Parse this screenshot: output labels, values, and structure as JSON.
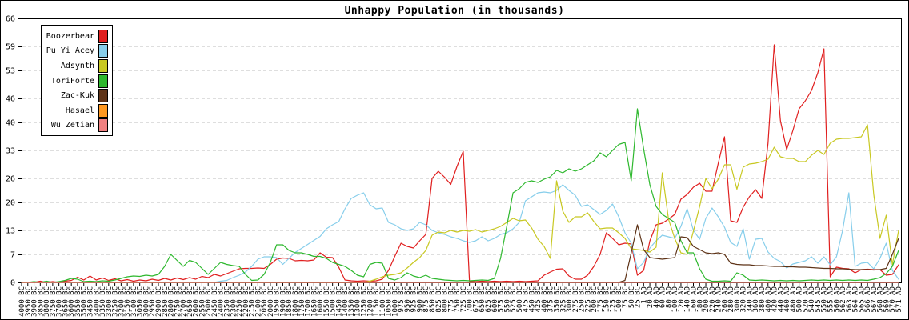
{
  "title": "Unhappy Population (in thousands)",
  "chart_data": {
    "type": "line",
    "title": "Unhappy Population (in thousands)",
    "xlabel": "",
    "ylabel": "",
    "ylim": [
      0,
      66
    ],
    "yticks": [
      0,
      7,
      13,
      20,
      26,
      33,
      40,
      46,
      53,
      59,
      66
    ],
    "grid": "horizontal-dashed",
    "legend_position": "top-left",
    "categories": [
      "4000 BC",
      "3950 BC",
      "3900 BC",
      "3850 BC",
      "3800 BC",
      "3750 BC",
      "3700 BC",
      "3650 BC",
      "3600 BC",
      "3550 BC",
      "3500 BC",
      "3450 BC",
      "3400 BC",
      "3350 BC",
      "3300 BC",
      "3250 BC",
      "3200 BC",
      "3150 BC",
      "3100 BC",
      "3050 BC",
      "3000 BC",
      "2950 BC",
      "2900 BC",
      "2850 BC",
      "2800 BC",
      "2750 BC",
      "2700 BC",
      "2650 BC",
      "2600 BC",
      "2550 BC",
      "2500 BC",
      "2450 BC",
      "2400 BC",
      "2350 BC",
      "2300 BC",
      "2250 BC",
      "2200 BC",
      "2150 BC",
      "2100 BC",
      "2050 BC",
      "2000 BC",
      "1950 BC",
      "1900 BC",
      "1850 BC",
      "1800 BC",
      "1750 BC",
      "1700 BC",
      "1650 BC",
      "1600 BC",
      "1550 BC",
      "1500 BC",
      "1450 BC",
      "1400 BC",
      "1350 BC",
      "1300 BC",
      "1250 BC",
      "1200 BC",
      "1150 BC",
      "1100 BC",
      "1050 BC",
      "1000 BC",
      "975 BC",
      "950 BC",
      "925 BC",
      "900 BC",
      "875 BC",
      "850 BC",
      "825 BC",
      "800 BC",
      "775 BC",
      "750 BC",
      "725 BC",
      "700 BC",
      "675 BC",
      "650 BC",
      "625 BC",
      "600 BC",
      "575 BC",
      "550 BC",
      "525 BC",
      "500 BC",
      "475 BC",
      "450 BC",
      "425 BC",
      "400 BC",
      "375 BC",
      "350 BC",
      "325 BC",
      "300 BC",
      "275 BC",
      "250 BC",
      "225 BC",
      "200 BC",
      "175 BC",
      "150 BC",
      "125 BC",
      "100 BC",
      "75 BC",
      "50 BC",
      "25 BC",
      "1 AD",
      "20 AD",
      "40 AD",
      "60 AD",
      "80 AD",
      "100 AD",
      "120 AD",
      "140 AD",
      "160 AD",
      "180 AD",
      "200 AD",
      "220 AD",
      "240 AD",
      "260 AD",
      "280 AD",
      "300 AD",
      "320 AD",
      "340 AD",
      "360 AD",
      "380 AD",
      "400 AD",
      "420 AD",
      "440 AD",
      "460 AD",
      "480 AD",
      "500 AD",
      "520 AD",
      "540 AD",
      "545 AD",
      "550 AD",
      "555 AD",
      "560 AD",
      "562 AD",
      "563 AD",
      "564 AD",
      "565 AD",
      "566 AD",
      "567 AD",
      "568 AD",
      "569 AD",
      "570 AD",
      "571 AD"
    ],
    "series": [
      {
        "name": "Boozerbear",
        "color": "#e01f1f",
        "values": [
          0,
          0,
          0,
          0.3,
          0,
          0.2,
          0,
          0.3,
          0.5,
          1.3,
          0.6,
          1.6,
          0.6,
          1.1,
          0.5,
          0.9,
          0.4,
          0.7,
          0.3,
          0.6,
          0.4,
          0.8,
          0.5,
          1,
          0.6,
          1.1,
          0.7,
          1.2,
          0.8,
          1.5,
          1.2,
          2,
          1.6,
          2.2,
          2.8,
          3.4,
          3.5,
          3.5,
          3.6,
          3.5,
          4.5,
          5.8,
          6.1,
          6,
          5.4,
          5.5,
          5.4,
          5.6,
          7.4,
          6.3,
          6.2,
          3.8,
          0.6,
          0.4,
          0.3,
          0.4,
          0.3,
          0.4,
          0.8,
          3,
          6.5,
          9.8,
          9,
          8.6,
          10.4,
          12,
          26,
          27.8,
          26.3,
          24.5,
          29,
          32.8,
          0.3,
          0.2,
          0.3,
          0.2,
          0.3,
          0.2,
          0.3,
          0.2,
          0.3,
          0.2,
          0.3,
          0.4,
          1.8,
          2.6,
          3.3,
          3.4,
          1.6,
          0.8,
          0.8,
          1.8,
          4,
          7,
          12.4,
          11,
          9.4,
          9.8,
          9.6,
          1.8,
          3,
          10.4,
          14.4,
          14.8,
          15.8,
          17,
          20.8,
          22,
          23.8,
          24.8,
          22.8,
          22.8,
          29.8,
          36.4,
          15.4,
          15,
          18.8,
          21.4,
          23.2,
          21,
          34.8,
          59.4,
          40.4,
          33.2,
          38,
          43.4,
          45.4,
          48,
          52.4,
          58.4,
          1.4,
          3.8,
          3.5,
          3.4,
          2.4,
          3.2,
          3.3,
          3.2,
          3.2,
          1.8,
          2,
          4.4
        ]
      },
      {
        "name": "Pu Yi Acey",
        "color": "#87ceeb",
        "values": [
          0,
          0,
          0,
          0,
          0,
          0,
          0,
          0,
          0,
          0,
          0,
          0,
          0,
          0,
          0,
          0,
          0,
          0,
          0,
          0,
          0,
          0,
          0,
          0,
          0,
          0,
          0,
          0,
          0,
          0,
          0,
          0,
          0.3,
          0.5,
          1.2,
          1.8,
          2.6,
          4,
          5.8,
          6.4,
          6.4,
          6.2,
          4.5,
          6,
          7.5,
          8.5,
          9.5,
          10.5,
          11.5,
          13.4,
          14.4,
          15.2,
          18.4,
          21,
          21.8,
          22.4,
          19.4,
          18.4,
          18.6,
          15,
          14.4,
          13.4,
          13,
          13.4,
          15,
          14.4,
          13,
          12.4,
          12,
          11.4,
          11,
          10.4,
          10,
          10.4,
          11.4,
          10.4,
          11,
          12,
          12.4,
          13.4,
          15,
          20.4,
          21.4,
          22.4,
          22.6,
          22.4,
          23,
          24.4,
          23,
          21.8,
          19,
          19.4,
          18.2,
          17,
          18,
          19.6,
          16.4,
          12.4,
          9.8,
          3.4,
          5,
          8.6,
          10.4,
          11.8,
          11.4,
          11,
          14,
          18.4,
          13,
          10.8,
          16,
          18.6,
          16.4,
          13.8,
          10,
          9,
          13.4,
          5.8,
          10.8,
          11,
          7.6,
          6,
          5.2,
          3.6,
          4.6,
          5,
          5.4,
          6.4,
          4.8,
          6.4,
          4.4,
          6.4,
          13,
          22.4,
          4,
          4.8,
          5,
          3.4,
          6,
          9.8,
          3,
          0.8
        ]
      },
      {
        "name": "Adsynth",
        "color": "#c8c822",
        "values": [
          0,
          0,
          0,
          0,
          0,
          0,
          0,
          0,
          0,
          0,
          0,
          0,
          0,
          0,
          0,
          0,
          0,
          0,
          0,
          0,
          0,
          0,
          0,
          0,
          0,
          0,
          0,
          0,
          0,
          0,
          0,
          0,
          0,
          0,
          0,
          0,
          0,
          0,
          0,
          0,
          0,
          0,
          0,
          0,
          0,
          0,
          0,
          0,
          0,
          0,
          0,
          0,
          0,
          0,
          0,
          0,
          0.3,
          0.8,
          1.4,
          1.8,
          2,
          2.4,
          3.6,
          5,
          6.2,
          8,
          11.8,
          12.6,
          12.4,
          13,
          12.6,
          13,
          12.8,
          13.2,
          12.6,
          13,
          13.4,
          14,
          15,
          16,
          15.4,
          15.6,
          13.6,
          10.8,
          9,
          6,
          25.4,
          17.8,
          15,
          16.4,
          16.4,
          17.4,
          15.2,
          13.4,
          13.6,
          13.6,
          12.4,
          11,
          8.4,
          8.2,
          8,
          7.6,
          8.8,
          27.4,
          15.8,
          11,
          7.4,
          7,
          12.8,
          19,
          26,
          23.4,
          25.8,
          29.4,
          29.4,
          23.3,
          28.8,
          29.6,
          29.8,
          30.2,
          30.8,
          33.8,
          31.4,
          31,
          31,
          30.2,
          30.2,
          31.8,
          33,
          32,
          34.8,
          35.8,
          36,
          36,
          36.2,
          36.4,
          39.4,
          22,
          11,
          16.8,
          4.4,
          13
        ]
      },
      {
        "name": "ToriForte",
        "color": "#2eb82e",
        "values": [
          0,
          0,
          0.2,
          0,
          0.3,
          0,
          0.2,
          0.5,
          1,
          0.8,
          0.2,
          0.3,
          0.2,
          0.4,
          0.3,
          0.6,
          1,
          1.4,
          1.6,
          1.5,
          1.8,
          1.6,
          2,
          4,
          7,
          5.5,
          4,
          5.5,
          5,
          3.5,
          2,
          3.5,
          5,
          4.5,
          4.2,
          4,
          2,
          0.5,
          0.6,
          2,
          5,
          9.4,
          9.4,
          8,
          7.4,
          7.4,
          7,
          6.5,
          6.5,
          6,
          5,
          4.5,
          4,
          3,
          1.8,
          1.4,
          4.5,
          5,
          4.8,
          1,
          0.6,
          1.2,
          2.4,
          1.6,
          1.2,
          1.8,
          1,
          0.8,
          0.6,
          0.5,
          0.4,
          0.5,
          0.4,
          0.5,
          0.6,
          0.5,
          1,
          6,
          14,
          22.4,
          23.4,
          25,
          25.4,
          25,
          25.8,
          26.4,
          28,
          27.4,
          28.4,
          27.8,
          28.4,
          29.4,
          30.4,
          32.4,
          31.4,
          33,
          34.5,
          35,
          25.4,
          43.4,
          33.4,
          24.4,
          19,
          17,
          16,
          15,
          10.4,
          7.4,
          7.4,
          3.4,
          0.8,
          0.3,
          0.3,
          0.4,
          0.3,
          2.4,
          1.8,
          0.6,
          0.5,
          0.6,
          0.5,
          0.4,
          0.5,
          0.4,
          0.5,
          0.4,
          0.5,
          0.6,
          0.5,
          0.6,
          0.5,
          0.6,
          0.5,
          0.6,
          0.5,
          0.6,
          0.5,
          0.8,
          1.2,
          2.2,
          4,
          8
        ]
      },
      {
        "name": "Zac-Kuk",
        "color": "#5e3317",
        "values": [
          0,
          0,
          0,
          0,
          0,
          0,
          0,
          0,
          0,
          0,
          0,
          0,
          0,
          0,
          0,
          0,
          0,
          0,
          0,
          0,
          0,
          0,
          0,
          0,
          0,
          0,
          0,
          0,
          0,
          0,
          0,
          0,
          0,
          0,
          0,
          0,
          0,
          0,
          0,
          0,
          0,
          0,
          0,
          0,
          0,
          0,
          0,
          0,
          0,
          0,
          0,
          0,
          0,
          0,
          0,
          0,
          0,
          0,
          0,
          0,
          0,
          0,
          0,
          0,
          0,
          0,
          0,
          0,
          0,
          0,
          0,
          0,
          0,
          0,
          0,
          0,
          0,
          0,
          0,
          0,
          0,
          0,
          0,
          0,
          0,
          0,
          0,
          0,
          0,
          0,
          0,
          0,
          0,
          0,
          0,
          0,
          0,
          0.5,
          7.4,
          14.4,
          8.2,
          6.2,
          6,
          5.8,
          6,
          6.2,
          11.4,
          11.2,
          9,
          8.2,
          7.4,
          7.2,
          7.4,
          7,
          4.8,
          4.5,
          4.4,
          4.4,
          4.2,
          4.2,
          4.1,
          4,
          4,
          3.9,
          3.9,
          3.8,
          3.8,
          3.7,
          3.6,
          3.5,
          3.5,
          3.4,
          3.4,
          3.3,
          3.2,
          3.2,
          3.2,
          3.1,
          3.2,
          3.5,
          7,
          11
        ]
      },
      {
        "name": "Hasael",
        "color": "#ff9820",
        "values": [
          0,
          0,
          0,
          0,
          0,
          0,
          0,
          0,
          0,
          0,
          0,
          0,
          0,
          0,
          0,
          0,
          0,
          0,
          0,
          0,
          0,
          0,
          0,
          0,
          0,
          0,
          0,
          0,
          0,
          0,
          0,
          0,
          0,
          0,
          0,
          0,
          0,
          0,
          0,
          0,
          0,
          0,
          0,
          0,
          0,
          0,
          0,
          0,
          0,
          0,
          0,
          0,
          0,
          0,
          0,
          0,
          0,
          0,
          0,
          0,
          0,
          0,
          0,
          0,
          0,
          0,
          0,
          0,
          0,
          0,
          0,
          0,
          0,
          0,
          0,
          0,
          0,
          0,
          0,
          0,
          0,
          0,
          0,
          0,
          0,
          0,
          0,
          0,
          0,
          0,
          0,
          0,
          0,
          0,
          0,
          0,
          0,
          0,
          0,
          0,
          0,
          0,
          0,
          0,
          0,
          0,
          0,
          0,
          0,
          0,
          0,
          0,
          0,
          0,
          0,
          0,
          0,
          0,
          0,
          0,
          0,
          0,
          0,
          0,
          0,
          0,
          0,
          0,
          0,
          0,
          0,
          0,
          0,
          0,
          0,
          0,
          0,
          0,
          0,
          0,
          0,
          0
        ]
      },
      {
        "name": "Wu Zetian",
        "color": "#f08080",
        "values": [
          0,
          0,
          0,
          0,
          0,
          0,
          0,
          0,
          0,
          0,
          0,
          0,
          0,
          0,
          0,
          0,
          0,
          0,
          0,
          0,
          0,
          0,
          0,
          0,
          0,
          0,
          0,
          0,
          0,
          0,
          0,
          0,
          0,
          0,
          0,
          0,
          0,
          0,
          0,
          0,
          0,
          0,
          0,
          0,
          0,
          0,
          0,
          0,
          0,
          0,
          0,
          0,
          0,
          0,
          0,
          0,
          0,
          0,
          0,
          0,
          0,
          0,
          0,
          0,
          0,
          0,
          0,
          0,
          0,
          0,
          0,
          0,
          0,
          0,
          0,
          0,
          0,
          0,
          0,
          0,
          0,
          0,
          0,
          0,
          0,
          0,
          0,
          0,
          0,
          0,
          0,
          0,
          0,
          0,
          0,
          0,
          0,
          0,
          0,
          0,
          0,
          0,
          0,
          0,
          0,
          0,
          0,
          0,
          0,
          0,
          0,
          0,
          0,
          0,
          0,
          0,
          0,
          0,
          0,
          0,
          0,
          0,
          0,
          0,
          0,
          0,
          0,
          0,
          0,
          0,
          0,
          0,
          0,
          0,
          0,
          0,
          0,
          0,
          0,
          0,
          0,
          0
        ]
      }
    ]
  }
}
